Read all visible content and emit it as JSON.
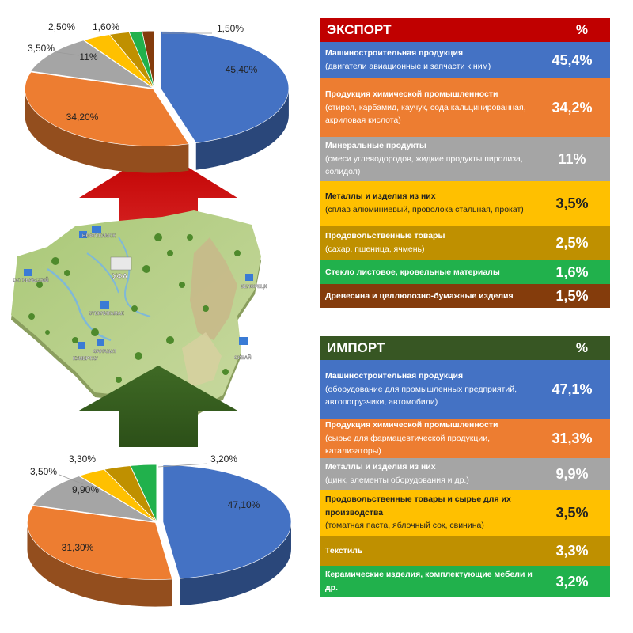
{
  "export_table": {
    "title": "ЭКСПОРТ",
    "pct_header": "%",
    "header_color": "#c00000",
    "rows": [
      {
        "title": "Машиностроительная продукция",
        "detail": "(двигатели авиационные и запчасти к ним)",
        "value": "45,4%",
        "color": "#4472c4",
        "text_color": "#ffffff"
      },
      {
        "title": "Продукция химической промышленности",
        "detail": "(стирол, карбамид, каучук, сода кальцинированная, акриловая кислота)",
        "value": "34,2%",
        "color": "#ed7d31",
        "text_color": "#ffffff"
      },
      {
        "title": "Минеральные продукты",
        "detail": "(смеси углеводородов, жидкие продукты пиролиза, солидол)",
        "value": "11%",
        "color": "#a5a5a5",
        "text_color": "#ffffff"
      },
      {
        "title": "Металлы и изделия из них",
        "detail": "(сплав алюминиевый, проволока стальная, прокат)",
        "value": "3,5%",
        "color": "#ffc000",
        "text_color": "#222222"
      },
      {
        "title": "Продовольственные товары",
        "detail": "(сахар, пшеница, ячмень)",
        "value": "2,5%",
        "color": "#bf9000",
        "text_color": "#ffffff"
      },
      {
        "title": "Стекло листовое, кровельные материалы",
        "detail": "",
        "value": "1,6%",
        "color": "#21b14c",
        "text_color": "#ffffff"
      },
      {
        "title": "Древесина и целлюлозно-бумажные изделия",
        "detail": "",
        "value": "1,5%",
        "color": "#843c0c",
        "text_color": "#ffffff"
      }
    ]
  },
  "import_table": {
    "title": "ИМПОРТ",
    "pct_header": "%",
    "header_color": "#375623",
    "rows": [
      {
        "title": "Машиностроительная продукция",
        "detail": "(оборудование для промышленных предприятий, автопогрузчики, автомобили)",
        "value": "47,1%",
        "color": "#4472c4",
        "text_color": "#ffffff"
      },
      {
        "title": "Продукция химической промышленности",
        "detail": "(сырье для фармацевтической продукции, катализаторы)",
        "value": "31,3%",
        "color": "#ed7d31",
        "text_color": "#ffffff"
      },
      {
        "title": "Металлы и изделия из них",
        "detail": "(цинк, элементы оборудования и др.)",
        "value": "9,9%",
        "color": "#a5a5a5",
        "text_color": "#ffffff"
      },
      {
        "title": "Продовольственные товары и сырье для их производства",
        "detail": "(томатная паста, яблочный сок, свинина)",
        "value": "3,5%",
        "color": "#ffc000",
        "text_color": "#222222"
      },
      {
        "title": "Текстиль",
        "detail": "",
        "value": "3,3%",
        "color": "#bf9000",
        "text_color": "#ffffff"
      },
      {
        "title": "Керамические изделия, комплектующие мебели и др.",
        "detail": "",
        "value": "3,2%",
        "color": "#21b14c",
        "text_color": "#ffffff"
      }
    ]
  },
  "map_labels": [
    "УФА",
    "СТЕРЛИТАМАК",
    "САЛАВАТ",
    "КУМЕРТАУ",
    "СИБАЙ",
    "БЕЛОРЕЦК",
    "НЕФТЕКАМСК",
    "ОКТЯБРЬСКИЙ"
  ],
  "chart_data": [
    {
      "type": "pie",
      "title": "",
      "labels": [
        "45,40%",
        "34,20%",
        "11%",
        "3,50%",
        "2,50%",
        "1,60%",
        "1,50%"
      ],
      "values": [
        45.4,
        34.2,
        11,
        3.5,
        2.5,
        1.6,
        1.5
      ],
      "colors": [
        "#4472c4",
        "#ed7d31",
        "#a5a5a5",
        "#ffc000",
        "#bf9000",
        "#21b14c",
        "#843c0c"
      ]
    },
    {
      "type": "pie",
      "title": "",
      "labels": [
        "47,10%",
        "31,30%",
        "9,90%",
        "3,50%",
        "3,30%",
        "3,20%"
      ],
      "values": [
        47.1,
        31.3,
        9.9,
        3.5,
        3.3,
        3.2
      ],
      "colors": [
        "#4472c4",
        "#ed7d31",
        "#a5a5a5",
        "#ffc000",
        "#bf9000",
        "#21b14c"
      ]
    }
  ]
}
